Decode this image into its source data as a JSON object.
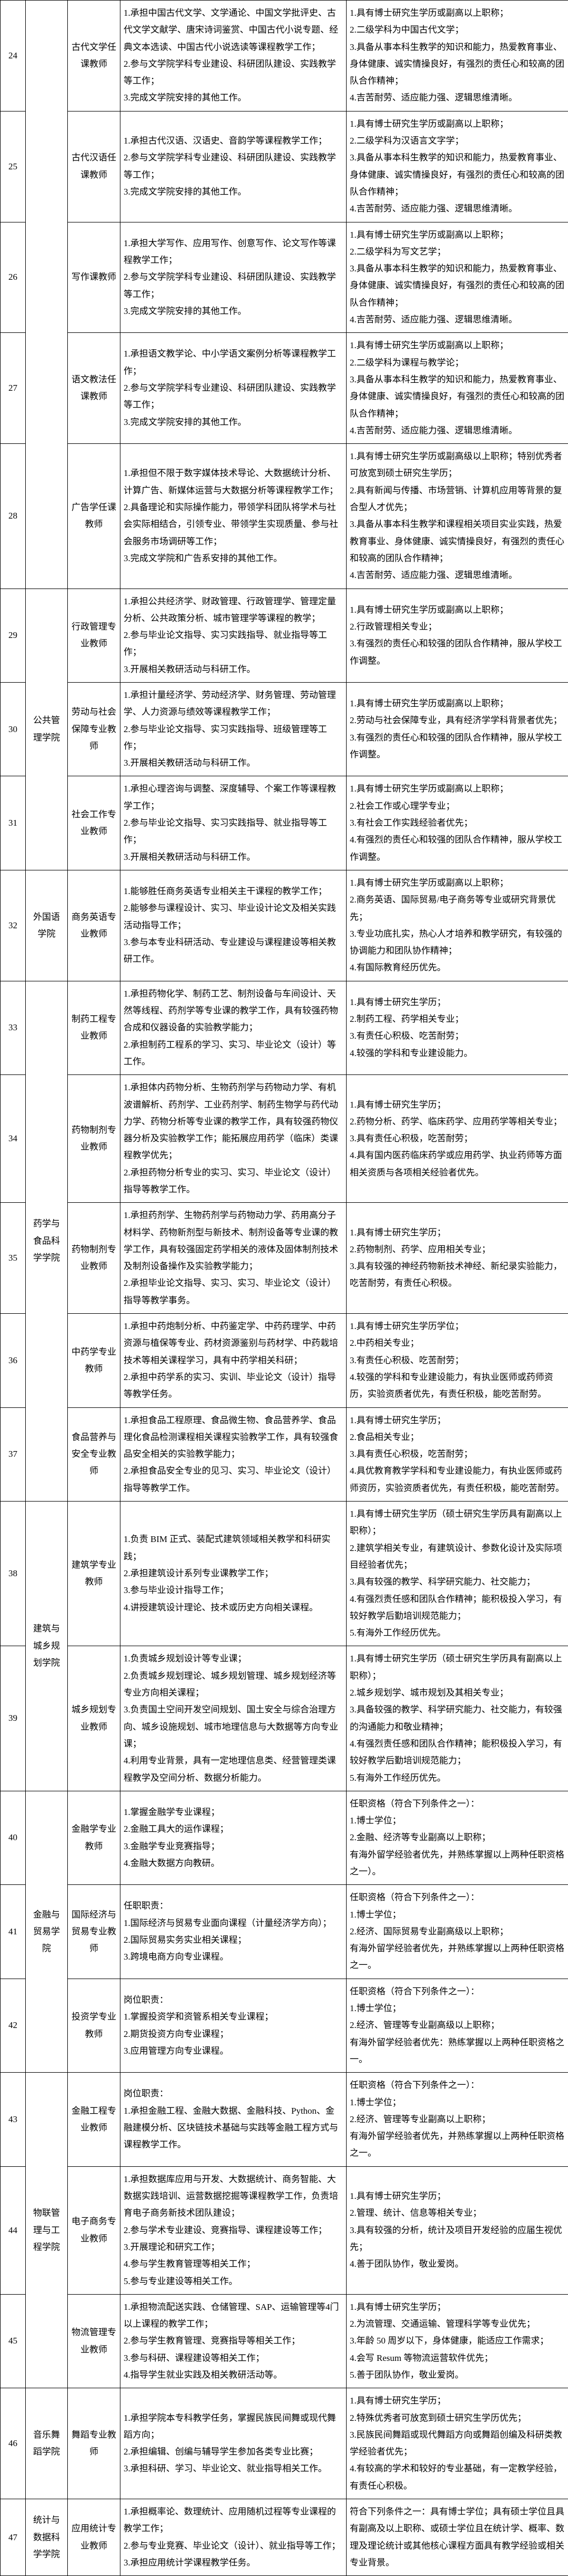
{
  "rows": [
    {
      "num": "24",
      "dept": "",
      "pos": "古代文学任课教师",
      "duty": [
        "1.承担中国古代文学、文学通论、中国文学批评史、古代文学文献学、唐宋诗词鉴赏、中国古代小说专题、经典文本选读、中国古代小说选读等课程教学工作；",
        "2.参与文学院学科专业建设、科研团队建设、实践教学等工作；",
        "3.完成文学院安排的其他工作。"
      ],
      "req": [
        "1.具有博士研究生学历或副高以上职称；",
        "2.二级学科为中国古代文学；",
        "3.具备从事本科生教学的知识和能力，热爱教育事业、身体健康、诚实情操良好，有强烈的责任心和较高的团队合作精神；",
        "4.吉苦耐劳、适应能力强、逻辑思维清晰。"
      ]
    },
    {
      "num": "25",
      "dept": "",
      "pos": "古代汉语任课教师",
      "duty": [
        "1.承担古代汉语、汉语史、音韵学等课程教学工作；",
        "2.参与文学院学科专业建设、科研团队建设、实践教学等工作；",
        "3.完成文学院安排的其他工作。"
      ],
      "req": [
        "1.具有博士研究生学历或副高以上职称；",
        "2.二级学科为汉语言文字学；",
        "3.具备从事本科生教学的知识和能力，热爱教育事业、身体健康、诚实情操良好，有强烈的责任心和较高的团队合作精神；",
        "4.吉苦耐劳、适应能力强、逻辑思维清晰。"
      ]
    },
    {
      "num": "26",
      "dept": "",
      "pos": "写作课教师",
      "duty": [
        "1.承担大学写作、应用写作、创意写作、论文写作等课程教学工作；",
        "2.参与文学院学科专业建设、科研团队建设、实践教学等工作；",
        "3.完成文学院安排的其他工作。"
      ],
      "req": [
        "1.具有博士研究生学历或副高以上职称；",
        "2.二级学科为写文艺学；",
        "3.具备从事本科生教学的知识和能力，热爱教育事业、身体健康、诚实情操良好，有强烈的责任心和较高的团队合作精神；",
        "4.吉苦耐劳、适应能力强、逻辑思维清晰。"
      ]
    },
    {
      "num": "27",
      "dept": "",
      "pos": "语文教法任课教师",
      "duty": [
        "1.承担语文教学论、中小学语文案例分析等课程教学工作；",
        "2.参与文学院学科专业建设、科研团队建设、实践教学等工作；",
        "3.完成文学院安排的其他工作。"
      ],
      "req": [
        "1.具有博士研究生学历或副高以上职称；",
        "2.二级学科为课程与教学论；",
        "3.具备从事本科生教学的知识和能力，热爱教育事业、身体健康、诚实情操良好，有强烈的责任心和较高的团队合作精神；",
        "4.吉苦耐劳、适应能力强、逻辑思维清晰。"
      ]
    },
    {
      "num": "28",
      "dept": "",
      "pos": "广告学任课教师",
      "duty": [
        "1.承担但不限于数字媒体技术导论、大数据统计分析、计算广告、新媒体运营与大数据分析等课程教学工作；",
        "2.具备理论和实际操作能力，带领学科团队将学术与社会实际相结合，引领专业、带领学生实现质量、参与社会服务市场调研等工作；",
        "3.完成文学院和广告系安排的其他工作。"
      ],
      "req": [
        "1.具有博士研究生学历或副高级以上职称；特别优秀者可放宽到硕士研究生学历；",
        "2.具有新闻与传播、市场营销、计算机应用等背景的复合型人才优先；",
        "3.具备从事本科生教学和课程相关项目实业实践，热爱教育事业、身体健康、诚实情操良好，有强烈的责任心和较高的团队合作精神；",
        "4.吉苦耐劳、适应能力强、逻辑思维清晰。"
      ]
    },
    {
      "num": "29",
      "dept": "公共管理学院",
      "pos": "行政管理专业教师",
      "dept_rowspan": 3,
      "duty": [
        "1.承担公共经济学、财政管理、行政管理学、管理定量分析、公共政策分析、城市管理学等课程的教学；",
        "2.参与毕业论文指导、实习实践指导、就业指导等工作；",
        "3.开展相关教研活动与科研工作。"
      ],
      "req": [
        "1.具有博士研究生学历或副高以上职称；",
        "2.行政管理相关专业；",
        "3.有强烈的责任心和较强的团队合作精神，服从学校工作调整。"
      ]
    },
    {
      "num": "30",
      "dept": "",
      "pos": "劳动与社会保障专业教师",
      "duty": [
        "1.承担计量经济学、劳动经济学、财务管理、劳动管理学、人力资源与绩效等课程教学工作；",
        "2.参与毕业论文指导、实习实践指导、班级管理等工作；",
        "3.开展相关教研活动与科研工作。"
      ],
      "req": [
        "1.具有博士研究生学历或副高以上职称；",
        "2.劳动与社会保障专业，具有经济学学科背景者优先；",
        "3.有强烈的责任心和较强的团队合作精神，服从学校工作调整。"
      ]
    },
    {
      "num": "31",
      "dept": "",
      "pos": "社会工作专业教师",
      "duty": [
        "1.承担心理咨询与调整、深度辅导、个案工作等课程教学工作；",
        "2.参与毕业论文指导、实习实践指导、就业指导等工作；",
        "3.开展相关教研活动与科研工作。"
      ],
      "req": [
        "1.具有博士研究生学历或副高以上职称；",
        "2.社会工作或心理学专业；",
        "3.有社会工作实践经验者优先；",
        "4.有强烈的责任心和较强的团队合作精神，服从学校工作调整。"
      ]
    },
    {
      "num": "32",
      "dept": "外国语学院",
      "pos": "商务英语专业教师",
      "duty": [
        "1.能够胜任商务英语专业相关主干课程的教学工作；",
        "2.能够参与课程设计、实习、毕业设计论文及相关实践活动指导工作；",
        "3.参与本专业科研活动、专业建设与课程建设等相关教研工作。"
      ],
      "req": [
        "1.具有博士研究生学历或副高以上职称；",
        "2.商务英语、国际贸易/电子商务等专业或研究背景优先；",
        "3.专业功底扎实，热心人才培养和教学研究，有较强的协调能力和团队协作精神；",
        "4.有国际教育经历优先。"
      ]
    },
    {
      "num": "33",
      "dept": "药学与食品科学学院",
      "pos": "制药工程专业教师",
      "dept_rowspan": 5,
      "duty": [
        "1.承担药物化学、制药工艺、制剂设备与车间设计、天然等线程、药剂学等专业课的教学工作，具有较强药物合成和仪器设备的实验教学能力；",
        "2.承担制药工程系的学习、实习、毕业论文（设计）等工作。"
      ],
      "req": [
        "1.具有博士研究生学历；",
        "2.制药工程、药学相关专业；",
        "3.有责任心积极、吃苦耐劳；",
        "4.较强的学科和专业建设能力。"
      ]
    },
    {
      "num": "34",
      "dept": "",
      "pos": "药物制剂专业教师",
      "duty": [
        "1.承担体内药物分析、生物药剂学与药物动力学、有机波谱解析、药剂学、工业药剂学、制药生物学与药代动力学、药物分析等专业课的教学工作，具有较强药物仪器分析及实验教学工作；能拓展应用药学（临床）类课程教学优先；",
        "2.承担药物分析专业的实习、实习、毕业论文（设计）指导等教学工作。"
      ],
      "req": [
        "1.具有博士研究生学历；",
        "2.药物分析、药学、临床药学、应用药学等相关专业；",
        "3.具有责任心积极，吃苦耐劳；",
        "4.具有国内医药临床药学或应用药学、执业药师等方面相关资质与各项相关经验者优先。"
      ]
    },
    {
      "num": "35",
      "dept": "",
      "pos": "药物制剂专业教师",
      "duty": [
        "1.承担药剂学、生物药剂学与药物动力学、药用高分子材料学、药物新剂型与新技术、制剂设备等专业课的教学工作，具有较强固定药学相关的液体及固体制剂技术及制剂设备操作及实验教学能力；",
        "2.承担毕业论文指导、实习、实习、毕业论文（设计）指导等教学事务。"
      ],
      "req": [
        "1.具有博士研究生学历；",
        "2.药物制剂、药学、应用相关专业；",
        "3.具有较强的神经药物新技术神经、新纪录实验能力，吃苦耐劳，有责任心积极。"
      ]
    },
    {
      "num": "36",
      "dept": "",
      "pos": "中药学专业教师",
      "duty": [
        "1.承担中药炮制分析、中药鉴定学、中药药理学、中药资源与植保等专业、药材资源鉴别与药材学、中药栽培技术等相关课程学习，具有中药学相关科研；",
        "2.承担中药学系的实习、实训、毕业论文（设计）指导等教学任务。"
      ],
      "req": [
        "1.具有博士研究生学历学位；",
        "2.中药相关专业；",
        "3.有责任心积极、吃苦耐劳；",
        "4.较强的学科和专业建设能力，有执业医师或药师资历，实验资质者优先，有责任积极，能吃苦耐劳。"
      ]
    },
    {
      "num": "37",
      "dept": "",
      "pos": "食品营养与安全专业教师",
      "duty": [
        "1.承担食品工程原理、食品微生物、食品营养学、食品理化食品检测课程相关课程实验教学工作，具有较强食品安全相关的实验教学能力；",
        "2.承担食品安全专业的见习、实习、毕业论文（设计）指导等教学工作。"
      ],
      "req": [
        "1.具有博士研究生学历；",
        "2.食品相关专业；",
        "3.具有责任心积极，吃苦耐劳；",
        "4.具优教育教学学科和专业建设能力，有执业医师或药师资历，实验资质者优先，有责任积极，能吃苦耐劳。"
      ]
    },
    {
      "num": "38",
      "dept": "建筑与城乡规划学院",
      "pos": "建筑学专业教师",
      "dept_rowspan": 2,
      "duty": [
        "1.负责 BIM 正式、装配式建筑领域相关教学和科研实践；",
        "2.承担建筑设计系列专业课教学工作；",
        "3.参与毕业设计指导工作；",
        "4.讲授建筑设计理论、技术或历史方向相关课程。"
      ],
      "req": [
        "1.具有博士研究生学历（硕士研究生学历具有副高以上职称）；",
        "2.建筑学相关专业，有建筑设计、参数化设计及实际项目经验者优先；",
        "3.具有较强的教学、科学研究能力、社交能力；",
        "4.有强烈责任感和团队合作精神；能积极投入学习，有较好教学后勤培训规范能力；",
        "5.有海外工作经历优先。"
      ]
    },
    {
      "num": "39",
      "dept": "",
      "pos": "城乡规划专业教师",
      "duty": [
        "1.负责城乡规划设计等专业课；",
        "2.负责城乡规划理论、城乡规划管理、城乡规划经济等专业方向相关课程；",
        "3.负责国土空间开发空间规划、国土安全与综合治理方向、城乡设施规划、城市地理信息与大数据等方向专业课；",
        "4.利用专业背景，具有一定地理信息类、经营管理类课程教学及空间分析、数据分析能力。"
      ],
      "req": [
        "1.具有博士研究生学历（硕士研究生学历具有副高以上职称）；",
        "2.城乡规划学、城市规划及其相关专业；",
        "3.具备较强的教学、科学研究能力、社交能力，有较强的沟通能力和敬业精神；",
        "4.有强烈责任感和团队合作精神；能积极投入学习，有较好教学后勤培训规范能力；",
        "5.有海外工作经历优先。"
      ]
    },
    {
      "num": "40",
      "dept": "金融与贸易学院",
      "pos": "金融学专业教师",
      "dept_rowspan": 3,
      "duty": [
        "1.掌握金融学专业课程；",
        "2.金融工具大的运作课程；",
        "3.金融学专业竞赛指导；",
        "4.金融大数据方向教研。"
      ],
      "req": [
        "任职资格（符合下列条件之一）：",
        "1.博士学位；",
        "2.金融、经济等专业副高以上职称；",
        "有海外留学经验者优先，并熟练掌握以上两种任职资格之一）。"
      ]
    },
    {
      "num": "41",
      "dept": "",
      "pos": "国际经济与贸易专业教师",
      "duty": [
        "任职职责：",
        "1.国际经济与贸易专业面向课程（计量经济学方向）；",
        "2.国际贸易实务实业相关课程；",
        "3.跨境电商方向专业课程。"
      ],
      "req": [
        "任职资格（符合下列条件之一）：",
        "1.博士学位；",
        "2.经济、国际贸易专业副高级以上职称；",
        "有海外留学经验者优先，并熟练掌握以上两种任职资格之一。"
      ]
    },
    {
      "num": "42",
      "dept": "",
      "pos": "投资学专业教师",
      "duty": [
        "岗位职责：",
        "1.掌握投资学和资管系相关专业课程；",
        "2.期货投资方向专业课程；",
        "3.应用管理方向专业课程。"
      ],
      "req": [
        "任职资格（符合下列条件之一）：",
        "1.博士学位；",
        "2.经济、管理等专业副高级以上职称；",
        "有海外留学经验者优先：熟练掌握以上两种任职资格之一。"
      ]
    },
    {
      "num": "43",
      "dept": "物联管理与工程学院",
      "pos": "金融工程专业教师",
      "dept_rowspan": 3,
      "duty": [
        "岗位职责：",
        "1.承担金融工程、金融大数据、金融科技、Python、金融建模分析、区块链技术基础与实践等金融工程方式与课程教学工作。"
      ],
      "req": [
        "任职资格（符合下列条件之一）：",
        "1.博士学位；",
        "2.经济、管理等专业副高以上职称；",
        "有海外留学经验者优先，并熟练掌握以上两种任职资格之一。"
      ]
    },
    {
      "num": "44",
      "dept": "",
      "pos": "电子商务专业教师",
      "duty": [
        "1.承担数据库应用与开发、大数据统计、商务智能、大数据实践培训、运营数据挖掘等课程教学工作，负责培育电子商务新技术团队建设；",
        "2.参与学术专业建设、竞赛指导、课程建设等工作；",
        "3.开展理论和研究工作；",
        "4.参与学生教育管理等相关工作；",
        "5.参与专业建设等相关工作。"
      ],
      "req": [
        "1.具有博士研究生学历；",
        "2.管理、统计、信息等相关专业；",
        "3.具有较强的分析，统计及项目开发经验的应届生视优先；",
        "4.善于团队协作，敬业爱岗。"
      ]
    },
    {
      "num": "45",
      "dept": "",
      "pos": "物流管理专业教师",
      "duty": [
        "1.承担物流配送实践、仓储管理、SAP、运输管理等4门以上课程的教学工作；",
        "2.参与学生教育管理、竞赛指导等相关工作；",
        "3.参与科研、课程建设等相关工作；",
        "4.指导学生就业实践及相关教研活动等。"
      ],
      "req": [
        "1.具有博士研究生学历；",
        "2.为流管理、交通运输、管理科学等专业优先；",
        "3.年龄 50 周岁以下，身体健康，能适应工作需求；",
        "4.会写 Resum 等物流运营软件优先；",
        "5.善于团队协作，敬业爱岗。"
      ]
    },
    {
      "num": "46",
      "dept": "音乐舞蹈学院",
      "pos": "舞蹈专业教师",
      "duty": [
        "1.承担学院本专科教学任务，掌握民族民间舞或现代舞蹈方向；",
        "2.承担编辑、创编与辅导学生参加各类专业比赛；",
        "3.承担科研、学习、毕业论文、就业指导相关工作。"
      ],
      "req": [
        "1.具有博士研究生学历；",
        "2.特殊优秀者可放宽到硕士研究生学历优先；",
        "3.民族民间舞蹈或现代舞蹈方向或舞蹈创编及科研类教学经验者优先；",
        "4.有较高的学术和较好的专业基础，有一定教学经验，有责任心积极。"
      ]
    },
    {
      "num": "47",
      "dept": "统计与数据科学学院",
      "pos": "应用统计专业教师",
      "duty": [
        "1.承担概率论、数理统计、应用随机过程等专业课程的教学工作；",
        "2.参与专业竞赛、毕业论文（设计）、就业指导等工作；",
        "3.承担应用统计学课程教学任务。"
      ],
      "req": [
        "符合下列条件之一：具有博士学位；具有硕士学位且具有副高及以上职称、或硕士学位且在统计学、概率、数理及理论统计或其他核心课程方面具有教学经验或相关专业背景。"
      ]
    }
  ]
}
